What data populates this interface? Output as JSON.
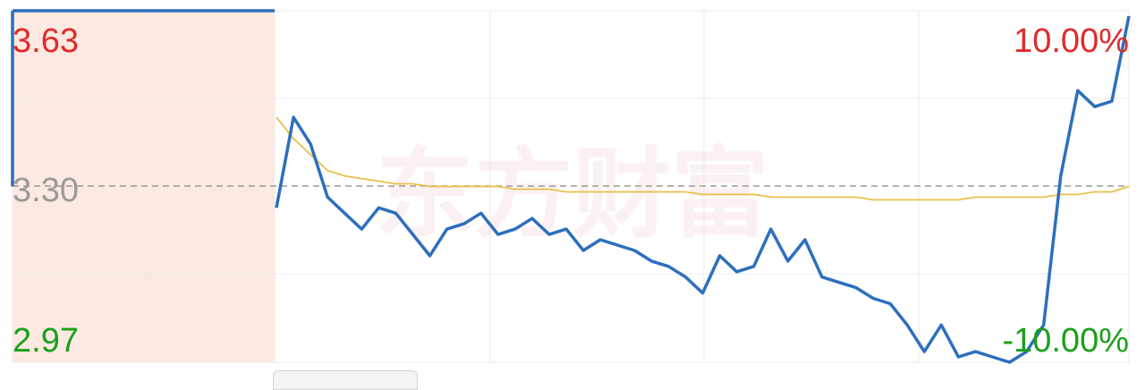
{
  "chart_data": {
    "type": "line",
    "y_price_range": [
      2.97,
      3.63
    ],
    "y_pct_range": [
      -10.0,
      10.0
    ],
    "reference_price": 3.3,
    "tick_labels": {
      "price_top": "3.63",
      "price_mid": "3.30",
      "price_bottom": "2.97",
      "pct_top": "10.00%",
      "pct_bottom": "-10.00%"
    },
    "watermark": "东方财富",
    "x": [
      0,
      2,
      4,
      6,
      8,
      10,
      12,
      14,
      16,
      18,
      20,
      22,
      24,
      26,
      28,
      30,
      32,
      34,
      36,
      38,
      40,
      42,
      44,
      46,
      48,
      50,
      52,
      54,
      56,
      58,
      60,
      62,
      64,
      66,
      68,
      70,
      72,
      74,
      76,
      78,
      80,
      82,
      84,
      86,
      88,
      90,
      92,
      94,
      96,
      98,
      100
    ],
    "series": [
      {
        "values": [
          3.63,
          3.63,
          3.63,
          3.63,
          3.63,
          3.63,
          3.63,
          3.63,
          3.63,
          3.63,
          3.63,
          3.63,
          3.63,
          3.63,
          3.63,
          3.63,
          3.63,
          3.63,
          3.63,
          3.63,
          3.63,
          3.63,
          3.63,
          3.63,
          3.63,
          3.63,
          3.63,
          3.63,
          3.63,
          3.63,
          3.63,
          3.63,
          3.63,
          3.63,
          3.63,
          3.63,
          3.63,
          3.63,
          3.63,
          3.63,
          3.63,
          3.63,
          3.63,
          3.63,
          3.63,
          3.63,
          3.63,
          3.63,
          3.63,
          3.63,
          3.63
        ],
        "color": "#2d6fbd"
      },
      {
        "values": [
          3.26,
          3.43,
          3.38,
          3.28,
          3.25,
          3.22,
          3.26,
          3.25,
          3.21,
          3.17,
          3.22,
          3.23,
          3.25,
          3.21,
          3.22,
          3.24,
          3.21,
          3.22,
          3.18,
          3.2,
          3.19,
          3.18,
          3.16,
          3.15,
          3.13,
          3.1,
          3.17,
          3.14,
          3.15,
          3.22,
          3.16,
          3.2,
          3.13,
          3.12,
          3.11,
          3.09,
          3.08,
          3.04,
          2.99,
          3.04,
          2.98,
          2.99,
          2.98,
          2.97,
          2.99,
          3.04,
          3.32,
          3.48,
          3.45,
          3.46,
          3.62
        ],
        "color": "#2d6fbd"
      },
      {
        "values": [
          3.43,
          3.39,
          3.36,
          3.33,
          3.32,
          3.315,
          3.31,
          3.305,
          3.305,
          3.3,
          3.3,
          3.3,
          3.3,
          3.3,
          3.295,
          3.295,
          3.295,
          3.29,
          3.29,
          3.29,
          3.29,
          3.29,
          3.29,
          3.29,
          3.29,
          3.285,
          3.285,
          3.285,
          3.285,
          3.28,
          3.28,
          3.28,
          3.28,
          3.28,
          3.28,
          3.275,
          3.275,
          3.275,
          3.275,
          3.275,
          3.275,
          3.28,
          3.28,
          3.28,
          3.28,
          3.28,
          3.285,
          3.285,
          3.29,
          3.29,
          3.3
        ],
        "color": "#e8c04a"
      }
    ],
    "grid": true
  }
}
